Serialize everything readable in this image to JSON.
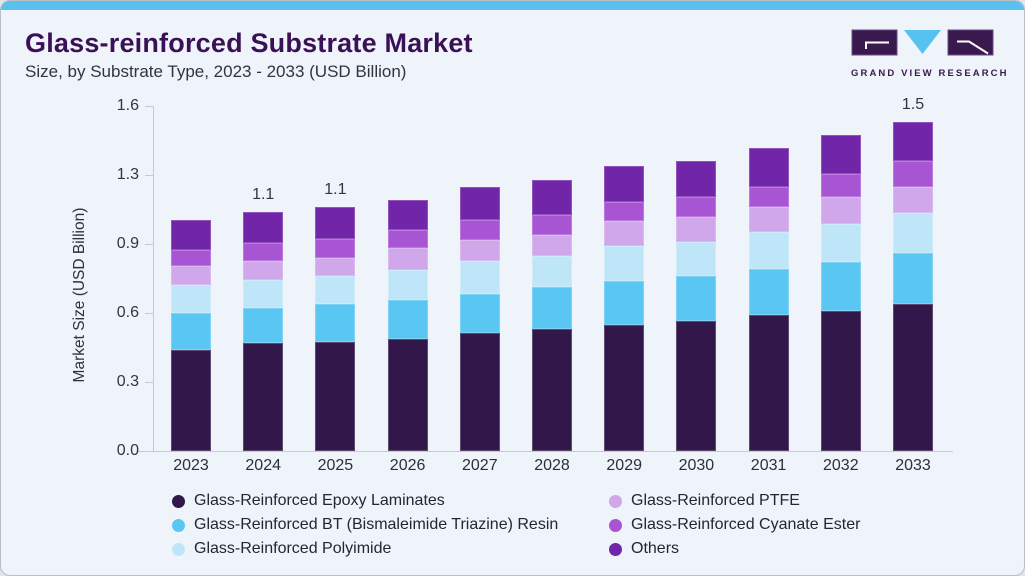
{
  "header": {
    "title": "Glass-reinforced Substrate Market",
    "subtitle": "Size, by Substrate Type, 2023 - 2033 (USD Billion)"
  },
  "logo": {
    "brand": "GRAND VIEW RESEARCH"
  },
  "colors": {
    "accent_bar": "#5ac0ee",
    "title": "#3a1156",
    "logo_purple": "#3a1a4e",
    "logo_cyan": "#56c2ef",
    "axis_line": "#c5cbd1",
    "card_background": "#eef4f9"
  },
  "chart_data": {
    "type": "bar",
    "stacked": true,
    "title": "Glass-reinforced Substrate Market Size, by Substrate Type, 2023 - 2033 (USD Billion)",
    "xlabel": "",
    "ylabel": "Market Size (USD Billion)",
    "ylim": [
      0,
      1.6
    ],
    "ytick_labels": [
      "0.0",
      "0.3",
      "0.6",
      "0.9",
      "1.3",
      "1.6"
    ],
    "grid": false,
    "legend_position": "bottom",
    "categories": [
      "2023",
      "2024",
      "2025",
      "2026",
      "2027",
      "2028",
      "2029",
      "2030",
      "2031",
      "2032",
      "2033"
    ],
    "series": [
      {
        "name": "Glass-Reinforced Epoxy Laminates",
        "color": "#32174a",
        "values": [
          0.47,
          0.5,
          0.505,
          0.52,
          0.545,
          0.565,
          0.585,
          0.605,
          0.63,
          0.65,
          0.68
        ]
      },
      {
        "name": "Glass-Reinforced BT (Bismaleimide Triazine) Resin",
        "color": "#5ac7f2",
        "values": [
          0.17,
          0.165,
          0.175,
          0.18,
          0.185,
          0.195,
          0.205,
          0.205,
          0.215,
          0.225,
          0.24
        ]
      },
      {
        "name": "Glass-Reinforced Polyimide",
        "color": "#bfe6f8",
        "values": [
          0.13,
          0.13,
          0.13,
          0.14,
          0.15,
          0.145,
          0.16,
          0.16,
          0.17,
          0.18,
          0.185
        ]
      },
      {
        "name": "Glass-Reinforced PTFE",
        "color": "#d0a7ea",
        "values": [
          0.09,
          0.085,
          0.085,
          0.1,
          0.1,
          0.095,
          0.115,
          0.115,
          0.115,
          0.125,
          0.12
        ]
      },
      {
        "name": "Glass-Reinforced Cyanate Ester",
        "color": "#a855d4",
        "values": [
          0.07,
          0.085,
          0.09,
          0.085,
          0.09,
          0.095,
          0.09,
          0.095,
          0.095,
          0.105,
          0.12
        ]
      },
      {
        "name": "Others",
        "color": "#7125a9",
        "values": [
          0.14,
          0.145,
          0.145,
          0.14,
          0.155,
          0.16,
          0.165,
          0.165,
          0.18,
          0.18,
          0.18
        ]
      }
    ],
    "total_labels": [
      "",
      "1.1",
      "1.1",
      "",
      "",
      "",
      "",
      "",
      "",
      "",
      "1.5"
    ]
  }
}
